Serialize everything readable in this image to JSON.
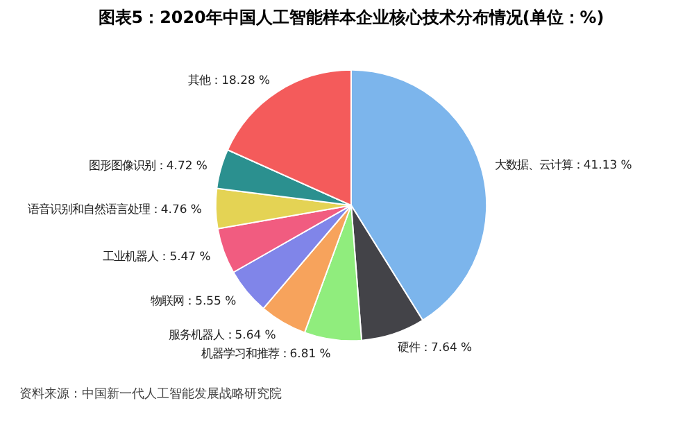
{
  "chart_data": {
    "type": "pie",
    "title": "图表5：2020年中国人工智能样本企业核心技术分布情况(单位：%)",
    "categories": [
      "大数据、云计算",
      "硬件",
      "机器学习和推荐",
      "服务机器人",
      "物联网",
      "工业机器人",
      "语音识别和自然语言处理",
      "图形图像识别",
      "其他"
    ],
    "values": [
      41.13,
      7.64,
      6.81,
      5.64,
      5.55,
      5.47,
      4.76,
      4.72,
      18.28
    ],
    "value_labels": [
      "41.13 %",
      "7.64 %",
      "6.81 %",
      "5.64 %",
      "5.55 %",
      "5.47 %",
      "4.76 %",
      "4.72 %",
      "18.28 %"
    ],
    "colors": [
      "#7cb5ec",
      "#434348",
      "#90ed7d",
      "#f7a35c",
      "#8085e9",
      "#f15c80",
      "#e4d354",
      "#2b908f",
      "#f45b5b"
    ],
    "legend": false,
    "annotations": [
      "资料来源：中国新一代人工智能发展战略研究院"
    ]
  }
}
